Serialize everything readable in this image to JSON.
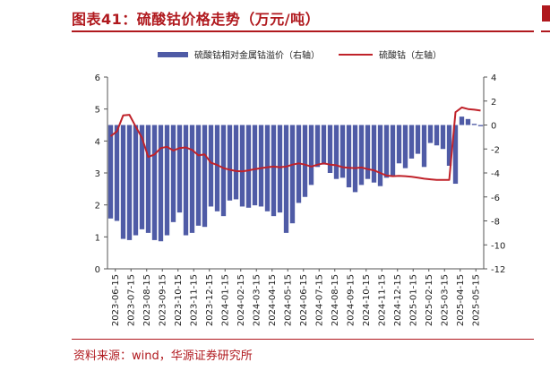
{
  "title": "图表41：硫酸钴价格走势（万元/吨）",
  "source": "资料来源：wind，华源证券研究所",
  "chart_data": {
    "type": "bar",
    "legend": [
      "硫酸钴相对金属钴溢价（右轴）",
      "硫酸钴（左轴）"
    ],
    "colors": {
      "bar": "#4f5ba6",
      "line": "#c0222a",
      "accent": "#b0191e"
    },
    "left_axis": {
      "ticks": [
        0,
        1,
        2,
        3,
        4,
        5,
        6
      ],
      "ylim": [
        0,
        6
      ]
    },
    "right_axis": {
      "ticks": [
        4,
        2,
        0,
        -2,
        -4,
        -6,
        -8,
        -10,
        -12
      ],
      "ylim": [
        -12,
        4
      ]
    },
    "x_ticks": [
      "2023-06-15",
      "2023-07-15",
      "2023-08-15",
      "2023-09-15",
      "2023-10-15",
      "2023-11-15",
      "2023-12-15",
      "2024-01-15",
      "2024-02-15",
      "2024-03-15",
      "2024-04-15",
      "2024-05-15",
      "2024-06-15",
      "2024-07-15",
      "2024-08-15",
      "2024-09-15",
      "2024-10-15",
      "2024-11-15",
      "2024-12-15",
      "2025-01-15",
      "2025-02-15",
      "2025-03-15",
      "2025-04-15",
      "2025-05-15"
    ],
    "series": [
      {
        "name": "硫酸钴相对金属钴溢价（右轴）",
        "axis": "right",
        "values": [
          -7.8,
          -8.0,
          -9.5,
          -9.6,
          -9.2,
          -8.7,
          -9.0,
          -9.6,
          -9.7,
          -9.2,
          -8.1,
          -7.3,
          -9.2,
          -9.0,
          -8.4,
          -8.5,
          -6.8,
          -7.2,
          -7.6,
          -6.3,
          -6.2,
          -6.8,
          -6.9,
          -6.7,
          -6.8,
          -7.2,
          -7.6,
          -7.3,
          -9.0,
          -8.2,
          -6.5,
          -6.0,
          -5.0,
          -3.5,
          -3.3,
          -4.0,
          -4.5,
          -4.4,
          -5.2,
          -5.6,
          -5.0,
          -4.5,
          -4.8,
          -5.1,
          -4.4,
          -4.2,
          -3.2,
          -3.6,
          -2.8,
          -2.4,
          -3.5,
          -1.5,
          -1.7,
          -2.0,
          -3.4,
          -4.9,
          0.7,
          0.5,
          0.1,
          -0.1
        ]
      },
      {
        "name": "硫酸钴（左轴）",
        "axis": "left",
        "values": [
          4.15,
          4.3,
          4.8,
          4.82,
          4.45,
          4.1,
          3.5,
          3.58,
          3.78,
          3.82,
          3.7,
          3.78,
          3.8,
          3.72,
          3.55,
          3.58,
          3.32,
          3.25,
          3.15,
          3.1,
          3.06,
          3.05,
          3.08,
          3.12,
          3.15,
          3.18,
          3.2,
          3.18,
          3.2,
          3.26,
          3.3,
          3.26,
          3.2,
          3.26,
          3.3,
          3.26,
          3.24,
          3.18,
          3.16,
          3.15,
          3.17,
          3.12,
          3.08,
          3.0,
          2.92,
          2.9,
          2.91,
          2.9,
          2.88,
          2.85,
          2.82,
          2.8,
          2.78,
          2.78,
          2.78,
          4.9,
          5.05,
          5.0,
          4.98,
          4.95
        ]
      }
    ]
  }
}
